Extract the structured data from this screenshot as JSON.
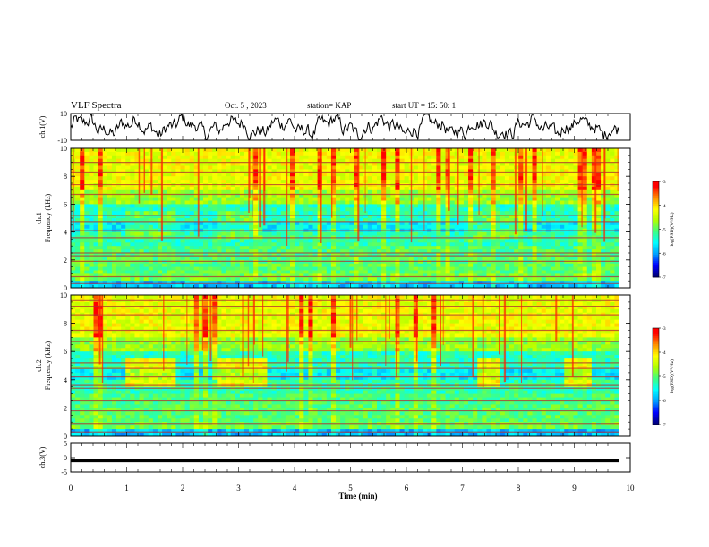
{
  "header": {
    "title": "VLF Spectra",
    "date": "Oct. 5 , 2023",
    "station": "station= KAP",
    "start": "start UT = 15: 50: 1"
  },
  "colors": {
    "background": "#ffffff",
    "axis": "#000000",
    "colormap": [
      "#00007a",
      "#0000ff",
      "#00a0ff",
      "#00ffff",
      "#40ff80",
      "#b0ff00",
      "#ffff00",
      "#ff9000",
      "#ff0000",
      "#ffffff"
    ]
  },
  "chart_data": [
    {
      "id": "ch1-waveform",
      "type": "line",
      "ylabel": "ch.1(V)",
      "ylim": [
        -10,
        10
      ],
      "ytick_labels": [
        "10",
        "-10"
      ],
      "xlim": [
        0,
        10
      ],
      "data_extent_min": 9.8,
      "series": [
        {
          "values": "noisy waveform oscillating roughly between -8 and 9 V"
        }
      ]
    },
    {
      "id": "ch1-spectrogram",
      "type": "heatmap",
      "ylabel": "Frequency (kHz)",
      "channel_label": "ch.1",
      "ylim": [
        0,
        10
      ],
      "yticks": [
        "0",
        "2",
        "4",
        "6",
        "8",
        "10"
      ],
      "colorbar": {
        "label": "log(PSD)(V²/Hz)",
        "range": [
          -7,
          -3
        ],
        "ticks": [
          "-3",
          "-4",
          "-5",
          "-6",
          "-7"
        ]
      },
      "bands_khz": [
        0.3,
        0.8,
        1.9,
        2.3,
        2.5,
        3.6,
        4.1,
        4.75,
        5.2,
        6.7,
        7.4,
        8.3,
        9.0
      ]
    },
    {
      "id": "ch2-spectrogram",
      "type": "heatmap",
      "ylabel": "Frequency (kHz)",
      "channel_label": "ch.2",
      "ylim": [
        0,
        10
      ],
      "yticks": [
        "0",
        "2",
        "4",
        "6",
        "8",
        "10"
      ],
      "colorbar": {
        "label": "log(PSD)(V²/Hz)",
        "range": [
          -7,
          -3
        ],
        "ticks": [
          "-3",
          "-4",
          "-5",
          "-6",
          "-7"
        ]
      },
      "bands_khz": [
        0.3,
        0.9,
        1.8,
        2.5,
        3.4,
        3.6,
        4.2,
        4.8,
        5.2,
        6.7,
        7.5,
        8.6,
        9.2,
        9.6
      ]
    },
    {
      "id": "ch3-signal",
      "type": "line",
      "ylabel": "ch.3(V)",
      "ylim": [
        -5,
        5
      ],
      "yticks": [
        "5",
        "0",
        "-5"
      ],
      "series": [
        {
          "values": "thick band centered near -1 V from 0 to 9.8 min"
        }
      ]
    }
  ],
  "xaxis": {
    "label": "Time (min)",
    "range": [
      0,
      10
    ],
    "ticks": [
      "0",
      "1",
      "2",
      "3",
      "4",
      "5",
      "6",
      "7",
      "8",
      "9",
      "10"
    ]
  }
}
